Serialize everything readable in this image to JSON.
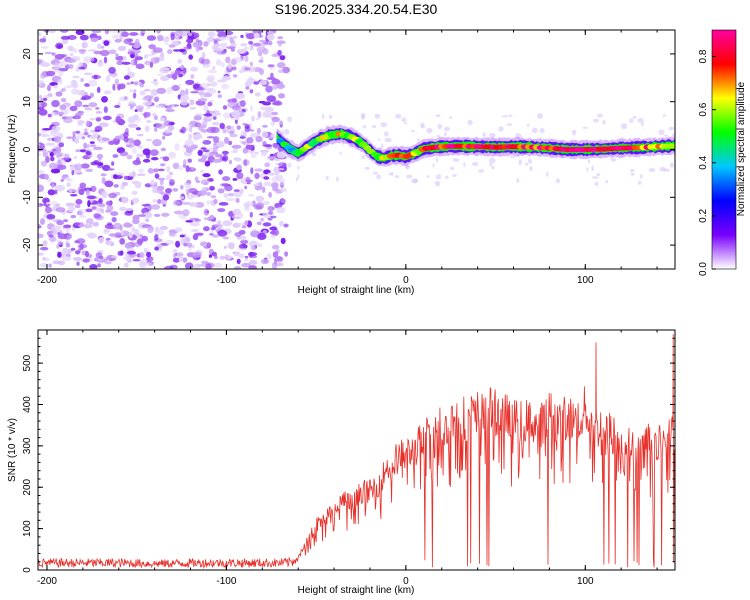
{
  "title": "S196.2025.334.20.54.E30",
  "chart_data": [
    {
      "type": "heatmap",
      "xlabel": "Height of straight line (km)",
      "ylabel": "Frequency (Hz)",
      "xlim": [
        -205,
        150
      ],
      "ylim": [
        -25,
        25
      ],
      "xticks": [
        -200,
        -100,
        0,
        100
      ],
      "yticks": [
        -20,
        -10,
        0,
        10,
        20
      ],
      "noise_region_x": [
        -205,
        -70
      ],
      "ridge": {
        "x": [
          -72,
          -66,
          -60,
          -54,
          -48,
          -42,
          -36,
          -30,
          -24,
          -20,
          -16,
          -12,
          -8,
          -4,
          0,
          5,
          10,
          20,
          30,
          40,
          50,
          60,
          70,
          80,
          90,
          100,
          110,
          120,
          130,
          140,
          150
        ],
        "y": [
          2.5,
          0.5,
          -0.8,
          0.8,
          2.2,
          3.0,
          3.3,
          2.6,
          1.2,
          -0.2,
          -1.5,
          -1.8,
          -1.3,
          -1.2,
          -1.5,
          -0.8,
          0.2,
          0.6,
          0.7,
          0.6,
          0.5,
          0.6,
          0.5,
          0.3,
          0.0,
          0.0,
          0.1,
          0.3,
          0.4,
          0.6,
          0.8
        ],
        "amplitude": [
          0.35,
          0.45,
          0.5,
          0.55,
          0.6,
          0.62,
          0.6,
          0.55,
          0.5,
          0.55,
          0.6,
          0.65,
          0.65,
          0.7,
          0.75,
          0.6,
          0.7,
          0.8,
          0.85,
          0.8,
          0.85,
          0.8,
          0.78,
          0.8,
          0.85,
          0.9,
          0.8,
          0.8,
          0.75,
          0.7,
          0.7
        ]
      },
      "colorbar": {
        "label": "Normalized spectral amplitude",
        "range": [
          0.0,
          0.9
        ],
        "ticks": [
          0.0,
          0.2,
          0.4,
          0.6,
          0.8
        ],
        "colors": [
          "#ffffff",
          "#7a00ff",
          "#0000ff",
          "#00c8ff",
          "#00ff00",
          "#ffff00",
          "#ff0000",
          "#ff00a0"
        ]
      }
    },
    {
      "type": "line",
      "xlabel": "Height of straight line (km)",
      "ylabel": "SNR (10 * v/v)",
      "xlim": [
        -205,
        150
      ],
      "ylim": [
        0,
        580
      ],
      "xticks": [
        -200,
        -100,
        0,
        100
      ],
      "yticks": [
        0,
        100,
        200,
        300,
        400,
        500
      ],
      "color": "#e8302a",
      "x": [
        -205,
        -180,
        -160,
        -140,
        -120,
        -100,
        -80,
        -70,
        -65,
        -60,
        -55,
        -50,
        -45,
        -40,
        -35,
        -30,
        -25,
        -20,
        -15,
        -10,
        -5,
        0,
        5,
        10,
        15,
        20,
        25,
        30,
        35,
        40,
        45,
        50,
        55,
        60,
        65,
        70,
        75,
        80,
        85,
        90,
        95,
        100,
        105,
        110,
        115,
        120,
        125,
        130,
        135,
        140,
        145,
        150
      ],
      "y": [
        20,
        20,
        20,
        18,
        20,
        20,
        20,
        20,
        22,
        30,
        70,
        110,
        130,
        140,
        170,
        160,
        190,
        190,
        210,
        250,
        270,
        280,
        290,
        320,
        340,
        350,
        360,
        370,
        370,
        380,
        390,
        380,
        380,
        360,
        360,
        360,
        350,
        380,
        360,
        370,
        360,
        390,
        340,
        350,
        330,
        310,
        300,
        280,
        320,
        300,
        340,
        320
      ],
      "spikes": [
        [
          106,
          550
        ],
        [
          149,
          570
        ],
        [
          150,
          410
        ]
      ]
    }
  ]
}
